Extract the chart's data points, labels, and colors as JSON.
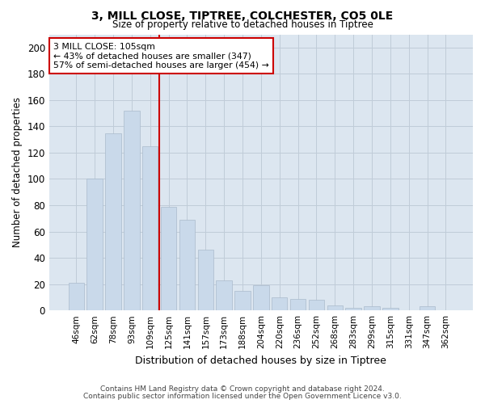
{
  "title1": "3, MILL CLOSE, TIPTREE, COLCHESTER, CO5 0LE",
  "title2": "Size of property relative to detached houses in Tiptree",
  "xlabel": "Distribution of detached houses by size in Tiptree",
  "ylabel": "Number of detached properties",
  "bar_color": "#c9d9ea",
  "bar_edgecolor": "#aabbcc",
  "bar_linewidth": 0.5,
  "grid_color": "#c0ccd8",
  "bg_color": "#dce6f0",
  "categories": [
    "46sqm",
    "62sqm",
    "78sqm",
    "93sqm",
    "109sqm",
    "125sqm",
    "141sqm",
    "157sqm",
    "173sqm",
    "188sqm",
    "204sqm",
    "220sqm",
    "236sqm",
    "252sqm",
    "268sqm",
    "283sqm",
    "299sqm",
    "315sqm",
    "331sqm",
    "347sqm",
    "362sqm"
  ],
  "values": [
    21,
    100,
    135,
    152,
    125,
    79,
    69,
    46,
    23,
    15,
    19,
    10,
    9,
    8,
    4,
    2,
    3,
    2,
    0,
    3,
    0
  ],
  "vline_index": 4,
  "vline_color": "#cc0000",
  "annotation_line1": "3 MILL CLOSE: 105sqm",
  "annotation_line2": "← 43% of detached houses are smaller (347)",
  "annotation_line3": "57% of semi-detached houses are larger (454) →",
  "annotation_box_edgecolor": "#cc0000",
  "footnote1": "Contains HM Land Registry data © Crown copyright and database right 2024.",
  "footnote2": "Contains public sector information licensed under the Open Government Licence v3.0.",
  "ylim": [
    0,
    210
  ],
  "yticks": [
    0,
    20,
    40,
    60,
    80,
    100,
    120,
    140,
    160,
    180,
    200
  ]
}
